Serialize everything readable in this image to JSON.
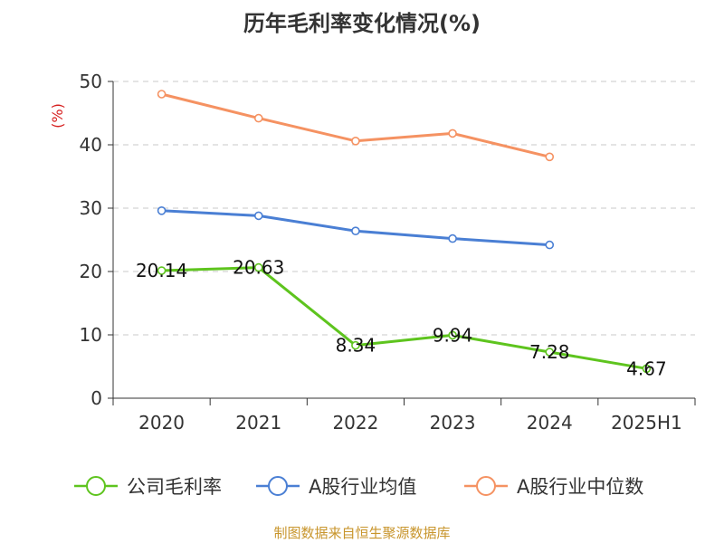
{
  "chart_data": {
    "type": "line",
    "title": "历年毛利率变化情况(%)",
    "ylabel": "(%)",
    "ylim": [
      0,
      50
    ],
    "yticks": [
      0,
      10,
      20,
      30,
      40,
      50
    ],
    "grid": true,
    "legend_position": "bottom",
    "categories": [
      "2020",
      "2021",
      "2022",
      "2023",
      "2024",
      "2025H1"
    ],
    "series": [
      {
        "name": "公司毛利率",
        "color": "#5ec41e",
        "values": [
          20.14,
          20.63,
          8.34,
          9.94,
          7.28,
          4.67
        ],
        "labels": [
          "20.14",
          "20.63",
          "8.34",
          "9.94",
          "7.28",
          "4.67"
        ]
      },
      {
        "name": "A股行业均值",
        "color": "#4a7fd4",
        "values": [
          29.6,
          28.8,
          26.4,
          25.2,
          24.2,
          null
        ]
      },
      {
        "name": "A股行业中位数",
        "color": "#f59262",
        "values": [
          48.0,
          44.2,
          40.6,
          41.8,
          38.1,
          null
        ]
      }
    ]
  },
  "source": "制图数据来自恒生聚源数据库"
}
